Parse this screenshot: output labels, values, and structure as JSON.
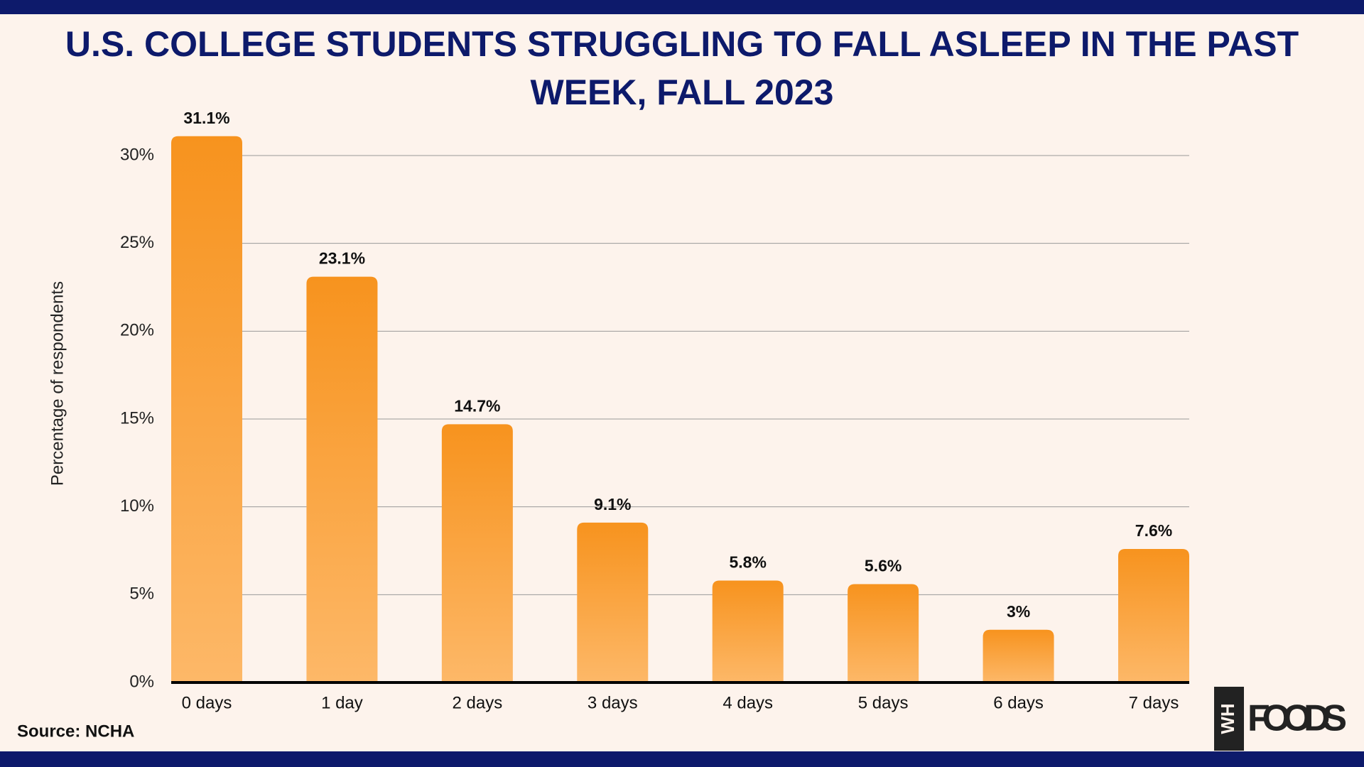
{
  "chart_data": {
    "type": "bar",
    "title": "U.S. COLLEGE STUDENTS STRUGGLING TO FALL ASLEEP IN THE PAST WEEK, FALL 2023",
    "y_label": "Percentage of respondents",
    "categories": [
      "0 days",
      "1 day",
      "2 days",
      "3 days",
      "4 days",
      "5 days",
      "6 days",
      "7 days"
    ],
    "values": [
      31.1,
      23.1,
      14.7,
      9.1,
      5.8,
      5.6,
      3,
      7.6
    ],
    "value_labels": [
      "31.1%",
      "23.1%",
      "14.7%",
      "9.1%",
      "5.8%",
      "5.6%",
      "3%",
      "7.6%"
    ],
    "color": "#f7931e",
    "ylim": [
      0,
      32
    ],
    "yticks": [
      {
        "value": 0,
        "label": "0%"
      },
      {
        "value": 5,
        "label": "5%"
      },
      {
        "value": 10,
        "label": "10%"
      },
      {
        "value": 15,
        "label": "15%"
      },
      {
        "value": 20,
        "label": "20%"
      },
      {
        "value": 25,
        "label": "25%"
      },
      {
        "value": 30,
        "label": "30%"
      }
    ],
    "grid": true,
    "source": "Source: NCHA"
  },
  "logo": {
    "mark": "WH",
    "text": "FOODS"
  }
}
